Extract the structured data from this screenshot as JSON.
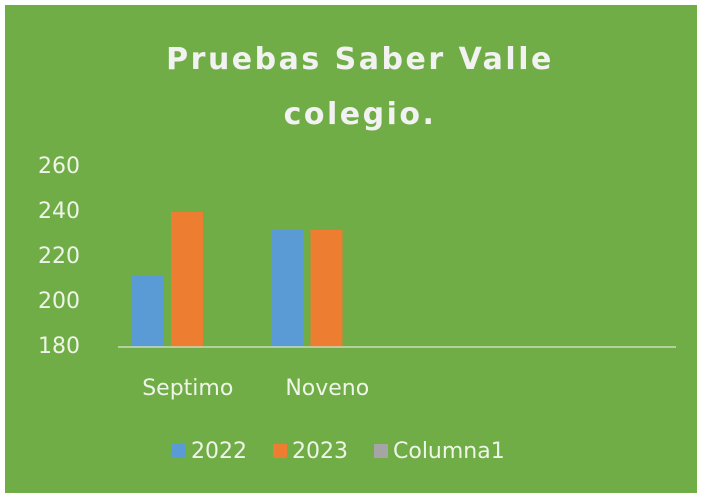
{
  "chart_data": {
    "type": "bar",
    "title": "Pruebas Saber Valle colegio.",
    "categories": [
      "Septimo",
      "Noveno",
      null,
      null
    ],
    "series": [
      {
        "name": "2022",
        "color": "#5b9bd5",
        "values": [
          212,
          232,
          null,
          null
        ]
      },
      {
        "name": "2023",
        "color": "#ed7d31",
        "values": [
          240,
          232,
          null,
          null
        ]
      },
      {
        "name": "Columna1",
        "color": "#a5a5a5",
        "values": [
          null,
          null,
          null,
          null
        ]
      }
    ],
    "ylim": [
      180,
      260
    ],
    "yticks": [
      180,
      200,
      220,
      240,
      260
    ],
    "grid": false,
    "legend": "bottom"
  }
}
